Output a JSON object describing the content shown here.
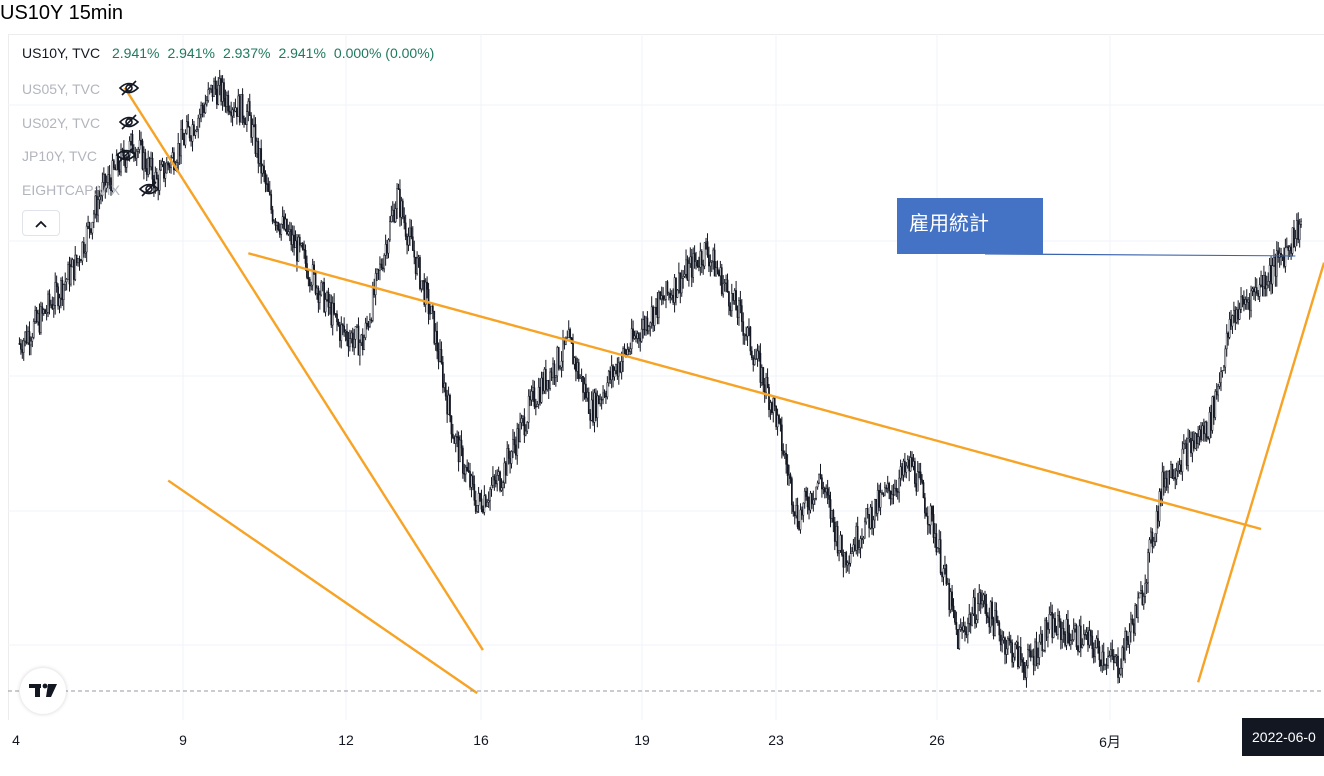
{
  "title": "US10Y 15min",
  "legend": {
    "main_symbol": "US10Y, TVC",
    "main_values": [
      "2.941%",
      "2.941%",
      "2.937%",
      "2.941%",
      "0.000% (0.00%)"
    ],
    "hidden_symbols": [
      "US05Y, TVC",
      "US02Y, TVC",
      "JP10Y, TVC",
      "EIGHTCAP:VIX"
    ],
    "collapse_icon": "chevron-up-icon"
  },
  "annotation": {
    "text": "雇用統計",
    "color": "#4472c4"
  },
  "date_badge": "2022-06-0",
  "colors": {
    "trendline": "#f7a325",
    "candle": "#131722",
    "value_text": "#1e7a5f",
    "hidden_text": "#b2b5be"
  },
  "chart_data": {
    "type": "line",
    "style": "candlestick",
    "symbol": "US10Y",
    "interval": "15min",
    "x_tick_labels": [
      "4",
      "9",
      "12",
      "16",
      "19",
      "23",
      "26",
      "6月"
    ],
    "grid": true,
    "series": [
      {
        "x": [
          0,
          2,
          5,
          7,
          10,
          12,
          15,
          17,
          20,
          22,
          25,
          28,
          30,
          33,
          36,
          38,
          40,
          42,
          45,
          48,
          50,
          52,
          55,
          58,
          60,
          63,
          66,
          68,
          70,
          72,
          75,
          78,
          80,
          82,
          84,
          86,
          88,
          90,
          93,
          96,
          98,
          100,
          102,
          104,
          106,
          108,
          110,
          112
        ],
        "values": [
          2.84,
          2.86,
          2.9,
          2.95,
          2.99,
          2.96,
          3.0,
          3.03,
          3.01,
          2.94,
          2.9,
          2.85,
          2.84,
          2.95,
          2.86,
          2.77,
          2.72,
          2.74,
          2.8,
          2.84,
          2.79,
          2.82,
          2.86,
          2.89,
          2.91,
          2.86,
          2.79,
          2.71,
          2.74,
          2.68,
          2.72,
          2.75,
          2.7,
          2.62,
          2.65,
          2.62,
          2.6,
          2.63,
          2.62,
          2.6,
          2.65,
          2.74,
          2.76,
          2.78,
          2.86,
          2.88,
          2.9,
          2.93
        ]
      }
    ],
    "trendlines": [
      {
        "x": [
          9.2,
          40.5
        ],
        "values": [
          3.03,
          2.612
        ]
      },
      {
        "x": [
          13,
          40
        ],
        "values": [
          2.738,
          2.58
        ]
      },
      {
        "x": [
          20,
          108.5
        ],
        "values": [
          2.907,
          2.702
        ]
      },
      {
        "x": [
          103,
          114
        ],
        "values": [
          2.588,
          2.9
        ]
      }
    ],
    "ylim": [
      2.56,
      3.07
    ],
    "x_range": [
      -1,
      114
    ],
    "annotations": [
      {
        "text": "雇用統計",
        "target_x": 111.5,
        "target_y": 2.905
      }
    ]
  }
}
